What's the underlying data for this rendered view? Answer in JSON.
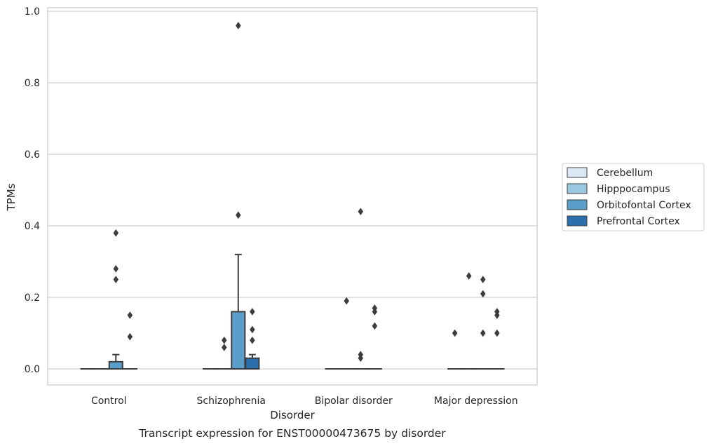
{
  "caption": "Transcript expression for ENST00000473675 by disorder",
  "chart_data": {
    "type": "box",
    "title": "",
    "xlabel": "Disorder",
    "ylabel": "TPMs",
    "ylim": [
      -0.045,
      1.01
    ],
    "yticks": [
      "0.0",
      "0.2",
      "0.4",
      "0.6",
      "0.8",
      "1.0"
    ],
    "grid": true,
    "legend_position": "right",
    "categories": [
      "Control",
      "Schizophrenia",
      "Bipolar disorder",
      "Major depression"
    ],
    "series": [
      {
        "name": "Cerebellum",
        "color": "#dbe9f6",
        "boxes": [
          {
            "q1": 0,
            "median": 0,
            "q3": 0,
            "whisker_low": 0,
            "whisker_high": 0,
            "outliers": []
          },
          {
            "q1": 0,
            "median": 0,
            "q3": 0,
            "whisker_low": 0,
            "whisker_high": 0,
            "outliers": []
          },
          {
            "q1": 0,
            "median": 0,
            "q3": 0,
            "whisker_low": 0,
            "whisker_high": 0,
            "outliers": []
          },
          {
            "q1": 0,
            "median": 0,
            "q3": 0,
            "whisker_low": 0,
            "whisker_high": 0,
            "outliers": [
              0.1
            ]
          }
        ]
      },
      {
        "name": "Hipppocampus",
        "color": "#9ac8e0",
        "boxes": [
          {
            "q1": 0,
            "median": 0,
            "q3": 0,
            "whisker_low": 0,
            "whisker_high": 0,
            "outliers": []
          },
          {
            "q1": 0,
            "median": 0,
            "q3": 0,
            "whisker_low": 0,
            "whisker_high": 0,
            "outliers": [
              0.08,
              0.06
            ]
          },
          {
            "q1": 0,
            "median": 0,
            "q3": 0,
            "whisker_low": 0,
            "whisker_high": 0,
            "outliers": [
              0.19
            ]
          },
          {
            "q1": 0,
            "median": 0,
            "q3": 0,
            "whisker_low": 0,
            "whisker_high": 0,
            "outliers": [
              0.26
            ]
          }
        ]
      },
      {
        "name": "Orbitofontal Cortex",
        "color": "#5a9ec9",
        "boxes": [
          {
            "q1": 0,
            "median": 0,
            "q3": 0.02,
            "whisker_low": 0,
            "whisker_high": 0.04,
            "outliers": [
              0.38,
              0.28,
              0.25
            ]
          },
          {
            "q1": 0,
            "median": 0,
            "q3": 0.16,
            "whisker_low": 0,
            "whisker_high": 0.32,
            "outliers": [
              0.96,
              0.43
            ]
          },
          {
            "q1": 0,
            "median": 0,
            "q3": 0,
            "whisker_low": 0,
            "whisker_high": 0,
            "outliers": [
              0.44,
              0.04,
              0.03
            ]
          },
          {
            "q1": 0,
            "median": 0,
            "q3": 0,
            "whisker_low": 0,
            "whisker_high": 0,
            "outliers": [
              0.25,
              0.21,
              0.1
            ]
          }
        ]
      },
      {
        "name": "Prefrontal Cortex",
        "color": "#2c6fad",
        "boxes": [
          {
            "q1": 0,
            "median": 0,
            "q3": 0,
            "whisker_low": 0,
            "whisker_high": 0,
            "outliers": [
              0.15,
              0.09
            ]
          },
          {
            "q1": 0,
            "median": 0,
            "q3": 0.03,
            "whisker_low": 0,
            "whisker_high": 0.04,
            "outliers": [
              0.16,
              0.11,
              0.08
            ]
          },
          {
            "q1": 0,
            "median": 0,
            "q3": 0,
            "whisker_low": 0,
            "whisker_high": 0,
            "outliers": [
              0.17,
              0.16,
              0.12
            ]
          },
          {
            "q1": 0,
            "median": 0,
            "q3": 0,
            "whisker_low": 0,
            "whisker_high": 0,
            "outliers": [
              0.16,
              0.15,
              0.1
            ]
          }
        ]
      }
    ]
  }
}
